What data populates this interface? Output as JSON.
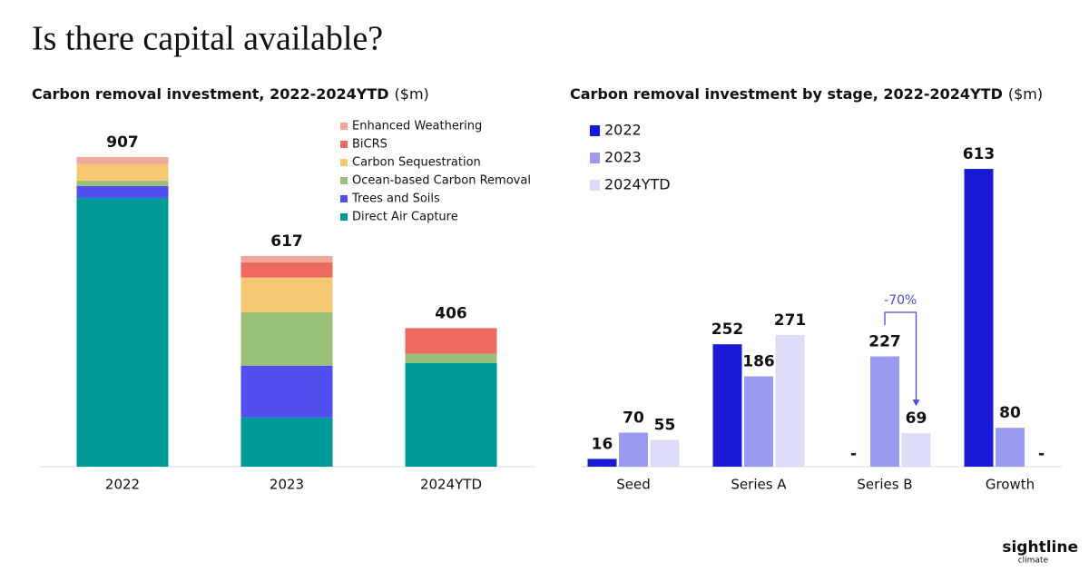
{
  "title": "Is there capital available?",
  "logo": {
    "name": "sightline",
    "sub": "climate"
  },
  "chart_data": [
    {
      "type": "bar",
      "stacked": true,
      "title": "Carbon removal investment, 2022-2024YTD",
      "unit": "($m)",
      "categories": [
        "2022",
        "2023",
        "2024YTD"
      ],
      "series": [
        {
          "name": "Direct Air Capture",
          "color": "#00999a",
          "values": [
            787,
            144,
            304
          ]
        },
        {
          "name": "Trees and Soils",
          "color": "#5050ee",
          "values": [
            35,
            152,
            0
          ]
        },
        {
          "name": "Ocean-based Carbon Removal",
          "color": "#98c177",
          "values": [
            16,
            157,
            27
          ]
        },
        {
          "name": "Carbon Sequestration",
          "color": "#f7c873",
          "values": [
            48,
            101,
            0
          ]
        },
        {
          "name": "BiCRS",
          "color": "#ee6a5e",
          "values": [
            0,
            45,
            75
          ]
        },
        {
          "name": "Enhanced Weathering",
          "color": "#f0a89c",
          "values": [
            21,
            18,
            0
          ]
        }
      ],
      "totals": [
        907,
        617,
        406
      ]
    },
    {
      "type": "bar",
      "stacked": false,
      "title": "Carbon removal investment by stage, 2022-2024YTD",
      "unit": "($m)",
      "categories": [
        "Seed",
        "Series A",
        "Series B",
        "Growth"
      ],
      "series": [
        {
          "name": "2022",
          "color": "#1a1ad6",
          "values": [
            16,
            252,
            null,
            613
          ],
          "value_labels": [
            "16",
            "252",
            "-",
            "613"
          ]
        },
        {
          "name": "2023",
          "color": "#9a9af0",
          "values": [
            70,
            186,
            227,
            80
          ],
          "value_labels": [
            "70",
            "186",
            "227",
            "80"
          ]
        },
        {
          "name": "2024YTD",
          "color": "#dcdcf8",
          "values": [
            55,
            271,
            69,
            null
          ],
          "value_labels": [
            "55",
            "271",
            "69",
            "-"
          ]
        }
      ],
      "annotation": {
        "text": "-70%",
        "color": "#4a4ae0"
      }
    }
  ]
}
